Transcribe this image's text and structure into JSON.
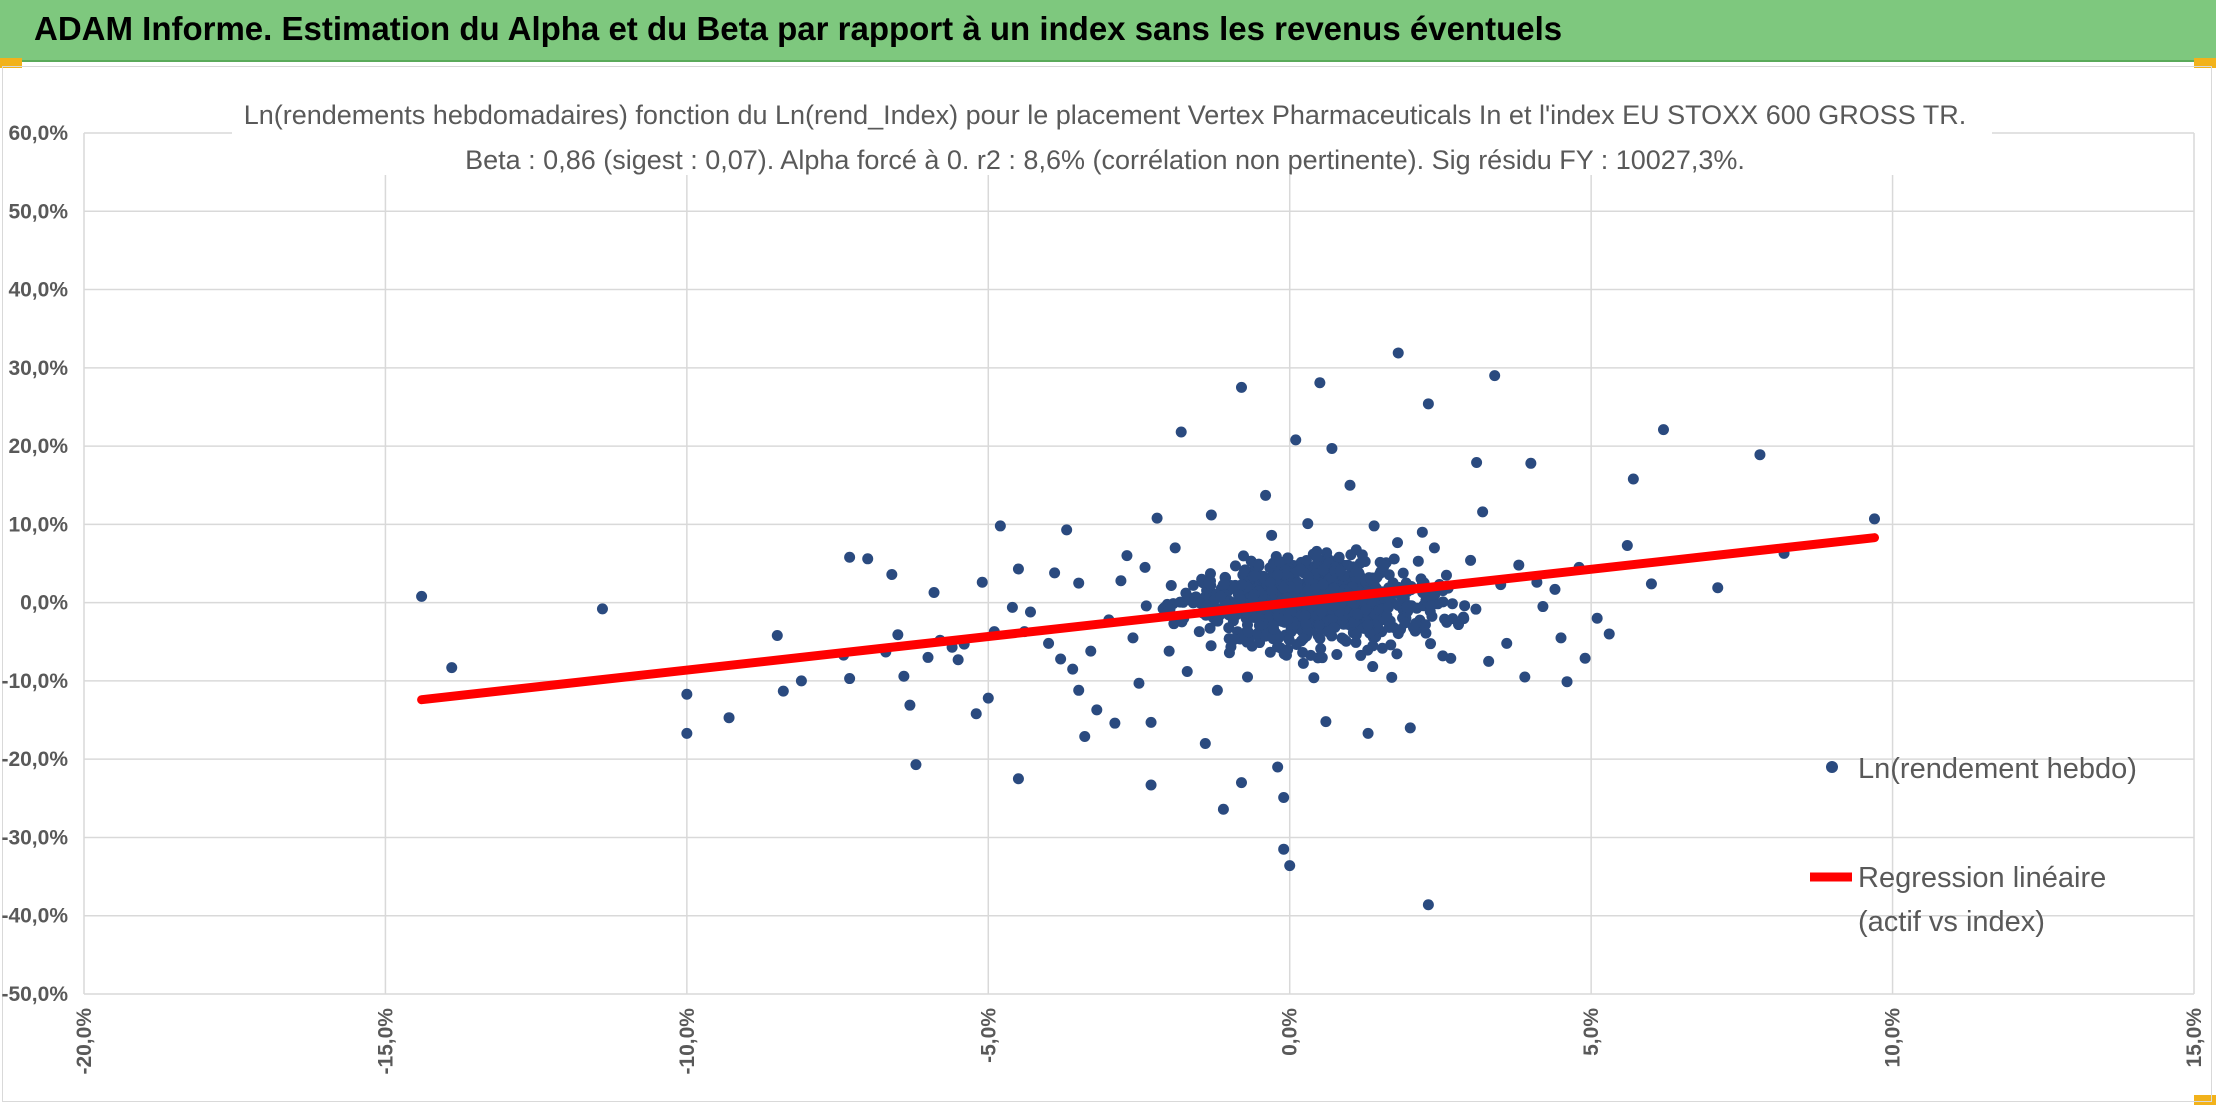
{
  "header": {
    "title": "ADAM Informe. Estimation du Alpha et du Beta par rapport à un index sans les revenus éventuels"
  },
  "colors": {
    "header_bg": "#7ec87e",
    "points": "#2a4a7f",
    "regression": "#ff0000",
    "grid": "#d9d9d9",
    "text": "#595959"
  },
  "chart_data": {
    "type": "scatter",
    "title_line1": "Ln(rendements hebdomadaires) fonction du Ln(rend_Index) pour le placement Vertex Pharmaceuticals In et l'index EU STOXX 600 GROSS TR.",
    "title_line2": "Beta : 0,86 (sigest : 0,07). Alpha forcé à 0. r2 : 8,6% (corrélation non pertinente). Sig résidu FY : 10027,3%.",
    "xlim": [
      -0.2,
      0.15
    ],
    "ylim": [
      -0.5,
      0.6
    ],
    "x_ticks": [
      "-20,0%",
      "-15,0%",
      "-10,0%",
      "-5,0%",
      "0,0%",
      "5,0%",
      "10,0%",
      "15,0%"
    ],
    "y_ticks": [
      "60,0%",
      "50,0%",
      "40,0%",
      "30,0%",
      "20,0%",
      "10,0%",
      "0,0%",
      "-10,0%",
      "-20,0%",
      "-30,0%",
      "-40,0%",
      "-50,0%"
    ],
    "grid": true,
    "legend_position": "right",
    "series": [
      {
        "name": "Ln(rendement hebdo)",
        "kind": "scatter",
        "points": [
          [
            -0.144,
            0.008
          ],
          [
            -0.139,
            -0.083
          ],
          [
            -0.114,
            -0.008
          ],
          [
            -0.1,
            -0.117
          ],
          [
            -0.1,
            -0.167
          ],
          [
            -0.093,
            -0.147
          ],
          [
            -0.085,
            -0.042
          ],
          [
            -0.084,
            -0.113
          ],
          [
            -0.081,
            -0.1
          ],
          [
            -0.074,
            -0.067
          ],
          [
            -0.073,
            -0.097
          ],
          [
            -0.073,
            0.058
          ],
          [
            -0.07,
            0.056
          ],
          [
            -0.067,
            -0.063
          ],
          [
            -0.066,
            0.036
          ],
          [
            -0.065,
            -0.041
          ],
          [
            -0.064,
            -0.094
          ],
          [
            -0.063,
            -0.131
          ],
          [
            -0.062,
            -0.207
          ],
          [
            -0.06,
            -0.07
          ],
          [
            -0.059,
            0.013
          ],
          [
            -0.058,
            -0.048
          ],
          [
            -0.056,
            -0.057
          ],
          [
            -0.055,
            -0.073
          ],
          [
            -0.054,
            -0.053
          ],
          [
            -0.052,
            -0.142
          ],
          [
            -0.051,
            0.026
          ],
          [
            -0.05,
            -0.122
          ],
          [
            -0.049,
            -0.037
          ],
          [
            -0.048,
            0.098
          ],
          [
            -0.046,
            -0.006
          ],
          [
            -0.045,
            0.043
          ],
          [
            -0.045,
            -0.225
          ],
          [
            -0.044,
            -0.037
          ],
          [
            -0.043,
            -0.012
          ],
          [
            -0.04,
            -0.052
          ],
          [
            -0.039,
            0.038
          ],
          [
            -0.038,
            -0.072
          ],
          [
            -0.037,
            0.093
          ],
          [
            -0.036,
            -0.085
          ],
          [
            -0.035,
            -0.112
          ],
          [
            -0.035,
            0.025
          ],
          [
            -0.034,
            -0.171
          ],
          [
            -0.033,
            -0.062
          ],
          [
            -0.032,
            -0.137
          ],
          [
            -0.03,
            -0.022
          ],
          [
            -0.029,
            -0.154
          ],
          [
            -0.028,
            0.028
          ],
          [
            -0.027,
            0.06
          ],
          [
            -0.026,
            -0.045
          ],
          [
            -0.025,
            -0.103
          ],
          [
            -0.024,
            0.045
          ],
          [
            -0.023,
            -0.233
          ],
          [
            -0.023,
            -0.153
          ],
          [
            -0.022,
            0.108
          ],
          [
            -0.021,
            -0.008
          ],
          [
            -0.02,
            -0.062
          ],
          [
            -0.019,
            0.07
          ],
          [
            -0.018,
            0.218
          ],
          [
            -0.017,
            -0.088
          ],
          [
            -0.016,
            0.022
          ],
          [
            -0.015,
            -0.037
          ],
          [
            -0.014,
            -0.18
          ],
          [
            -0.013,
            0.112
          ],
          [
            -0.012,
            -0.112
          ],
          [
            -0.011,
            -0.264
          ],
          [
            -0.01,
            -0.064
          ],
          [
            -0.009,
            0.047
          ],
          [
            -0.008,
            -0.23
          ],
          [
            -0.008,
            0.275
          ],
          [
            -0.007,
            -0.095
          ],
          [
            -0.006,
            0.033
          ],
          [
            -0.005,
            -0.051
          ],
          [
            -0.004,
            0.137
          ],
          [
            -0.003,
            0.086
          ],
          [
            -0.002,
            -0.21
          ],
          [
            -0.002,
            -0.012
          ],
          [
            -0.001,
            -0.249
          ],
          [
            -0.001,
            -0.315
          ],
          [
            0.0,
            -0.336
          ],
          [
            0.001,
            0.208
          ],
          [
            0.002,
            -0.018
          ],
          [
            0.003,
            0.101
          ],
          [
            0.004,
            -0.096
          ],
          [
            0.005,
            0.281
          ],
          [
            0.006,
            -0.152
          ],
          [
            0.007,
            0.197
          ],
          [
            0.008,
            0.036
          ],
          [
            0.009,
            -0.047
          ],
          [
            0.01,
            0.15
          ],
          [
            0.012,
            -0.022
          ],
          [
            0.013,
            -0.167
          ],
          [
            0.014,
            0.098
          ],
          [
            0.016,
            0.051
          ],
          [
            0.018,
            0.319
          ],
          [
            0.019,
            -0.022
          ],
          [
            0.02,
            -0.16
          ],
          [
            0.022,
            0.09
          ],
          [
            0.023,
            0.254
          ],
          [
            0.023,
            -0.386
          ],
          [
            0.024,
            0.07
          ],
          [
            0.026,
            0.035
          ],
          [
            0.028,
            -0.028
          ],
          [
            0.03,
            0.054
          ],
          [
            0.031,
            0.179
          ],
          [
            0.032,
            0.116
          ],
          [
            0.033,
            -0.075
          ],
          [
            0.034,
            0.29
          ],
          [
            0.035,
            0.023
          ],
          [
            0.036,
            -0.052
          ],
          [
            0.038,
            0.048
          ],
          [
            0.039,
            -0.095
          ],
          [
            0.04,
            0.178
          ],
          [
            0.041,
            0.026
          ],
          [
            0.042,
            -0.005
          ],
          [
            0.044,
            0.017
          ],
          [
            0.045,
            -0.045
          ],
          [
            0.046,
            -0.101
          ],
          [
            0.048,
            0.045
          ],
          [
            0.049,
            -0.071
          ],
          [
            0.051,
            -0.02
          ],
          [
            0.053,
            -0.04
          ],
          [
            0.056,
            0.073
          ],
          [
            0.057,
            0.158
          ],
          [
            0.06,
            0.024
          ],
          [
            0.062,
            0.221
          ],
          [
            0.071,
            0.019
          ],
          [
            0.078,
            0.189
          ],
          [
            0.082,
            0.063
          ],
          [
            0.097,
            0.107
          ]
        ]
      },
      {
        "name": "Regression linéaire",
        "name_line2": "(actif vs index)",
        "kind": "line",
        "x": [
          -0.144,
          0.097
        ],
        "y": [
          -0.124,
          0.083
        ]
      }
    ]
  }
}
